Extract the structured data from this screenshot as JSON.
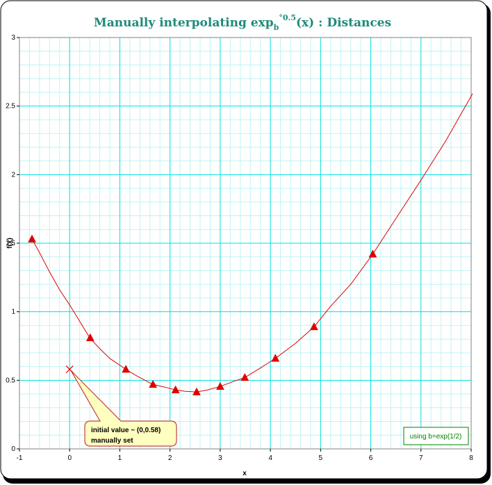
{
  "chart_data": {
    "type": "line",
    "title": {
      "main": "Manually interpolating exp",
      "sub": "b",
      "sup": "°0.5",
      "rest": "(x) : Distances"
    },
    "xlabel": "x",
    "ylabel": "f(x)",
    "xlim": [
      -1,
      8
    ],
    "ylim": [
      0,
      3
    ],
    "x_ticks": [
      -1,
      0,
      1,
      2,
      3,
      4,
      5,
      6,
      7,
      8
    ],
    "y_ticks": [
      0,
      0.5,
      1,
      1.5,
      2,
      2.5,
      3
    ],
    "y_tick_labels": [
      "0",
      "0.5",
      "1",
      "1.5",
      "2",
      "2.5",
      "3"
    ],
    "grid": "major and minor",
    "series": [
      {
        "style": "curve",
        "color": "#e00000",
        "x": [
          -0.75,
          -0.6,
          -0.4,
          -0.2,
          0,
          0.2,
          0.4,
          0.6,
          0.8,
          1.0,
          1.12,
          1.3,
          1.5,
          1.66,
          1.9,
          2.11,
          2.3,
          2.53,
          2.75,
          3.0,
          3.25,
          3.49,
          3.8,
          4.1,
          4.5,
          4.87,
          5.2,
          5.6,
          6.04,
          6.5,
          7.0,
          7.5,
          8.05
        ],
        "y": [
          1.53,
          1.43,
          1.29,
          1.16,
          1.05,
          0.93,
          0.81,
          0.73,
          0.66,
          0.61,
          0.58,
          0.54,
          0.5,
          0.47,
          0.45,
          0.43,
          0.42,
          0.415,
          0.43,
          0.455,
          0.49,
          0.52,
          0.59,
          0.66,
          0.77,
          0.89,
          1.04,
          1.2,
          1.42,
          1.68,
          1.96,
          2.25,
          2.59
        ]
      },
      {
        "style": "markers",
        "marker": "triangle",
        "color": "#e00000",
        "x": [
          -0.75,
          0.41,
          1.12,
          1.66,
          2.11,
          2.53,
          3.0,
          3.49,
          4.1,
          4.87,
          6.04
        ],
        "y": [
          1.53,
          0.81,
          0.58,
          0.47,
          0.43,
          0.415,
          0.455,
          0.52,
          0.66,
          0.89,
          1.42
        ]
      }
    ],
    "initial_point": {
      "x": 0,
      "y": 0.58,
      "marker": "x"
    },
    "annotations": {
      "callout_line1": "initial value ~ (0,0.58)",
      "callout_line2": "manually set",
      "box_note": "using b=exp(1/2)"
    },
    "colors": {
      "grid_major": "#00e0e0",
      "grid_minor": "#bff4f4",
      "series": "#e00000",
      "title": "#1f8a7a",
      "callout_fill": "#ffffc0",
      "callout_border": "#c04040",
      "note_border": "#008000",
      "note_text": "#008000"
    }
  }
}
